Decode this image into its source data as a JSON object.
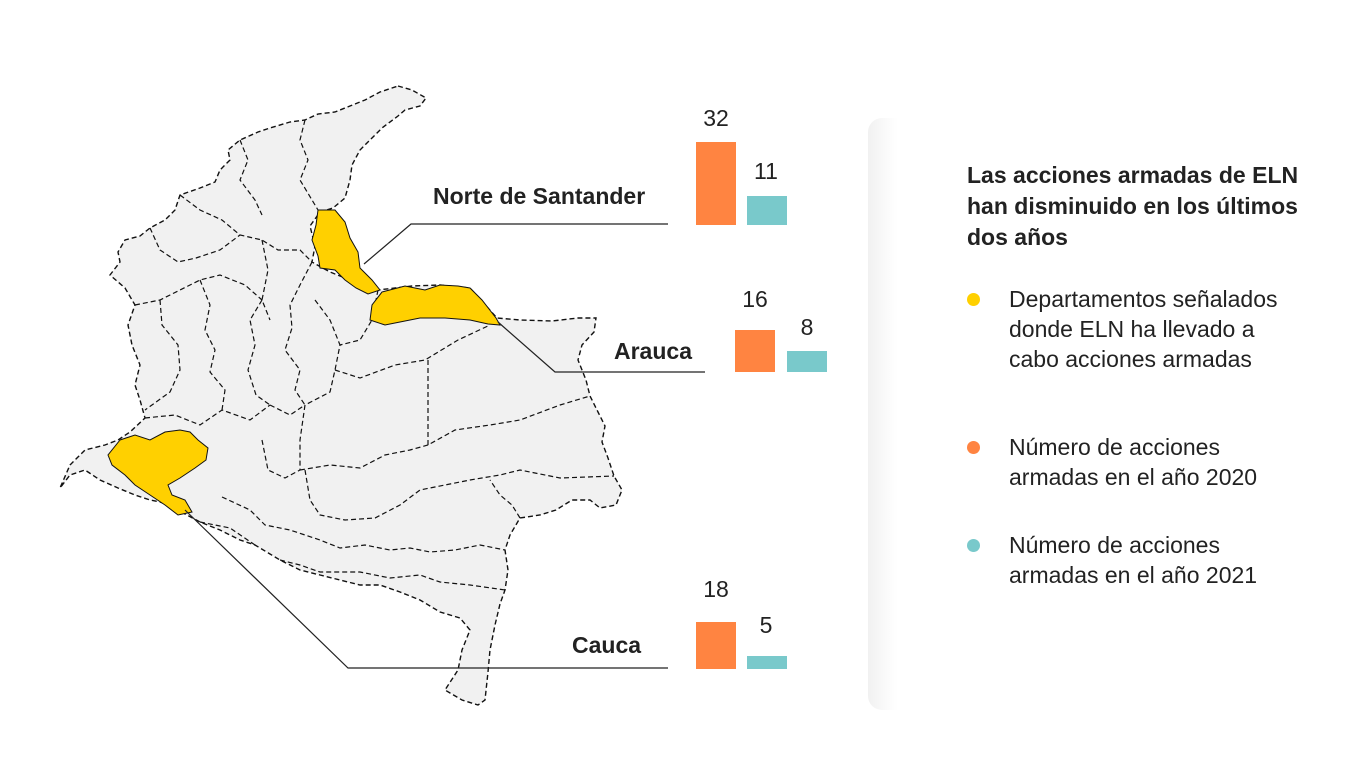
{
  "colors": {
    "highlight": "#ffd000",
    "bar_2020": "#ff8441",
    "bar_2021": "#79c9cb",
    "map_fill": "#f1f1f1",
    "border": "#111111"
  },
  "regions": [
    {
      "name": "Norte de Santander",
      "value_2020": 32,
      "value_2021": 11
    },
    {
      "name": "Arauca",
      "value_2020": 16,
      "value_2021": 8
    },
    {
      "name": "Cauca",
      "value_2020": 18,
      "value_2021": 5
    }
  ],
  "legend": {
    "title": "Las acciones armadas de ELN han disminuido en los últimos dos años",
    "items": [
      {
        "label": "Departamentos señalados donde ELN ha llevado a cabo acciones armadas",
        "color": "#ffd000"
      },
      {
        "label": "Número de acciones armadas en el año 2020",
        "color": "#ff8441"
      },
      {
        "label": "Número de acciones armadas en el año 2021",
        "color": "#79c9cb"
      }
    ]
  }
}
